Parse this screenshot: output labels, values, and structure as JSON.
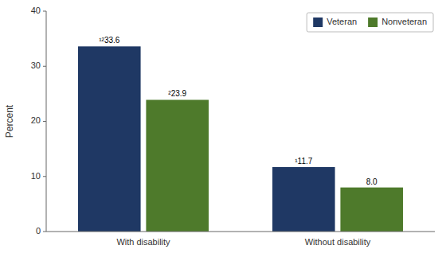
{
  "chart_data": {
    "type": "bar",
    "y_label": "Percent",
    "categories": [
      "With disability",
      "Without disability"
    ],
    "series": [
      {
        "name": "Veteran",
        "color": "#1f3864",
        "values": [
          33.6,
          11.7
        ],
        "value_labels": [
          "¹²33.6",
          "¹11.7"
        ]
      },
      {
        "name": "Nonveteran",
        "color": "#4e7a2b",
        "values": [
          23.9,
          8.0
        ],
        "value_labels": [
          "²23.9",
          "8.0"
        ]
      }
    ],
    "ylim": [
      0,
      40
    ],
    "yticks": [
      0,
      10,
      20,
      30,
      40
    ],
    "grid": false,
    "legend": "upper right",
    "data_labels": true
  }
}
